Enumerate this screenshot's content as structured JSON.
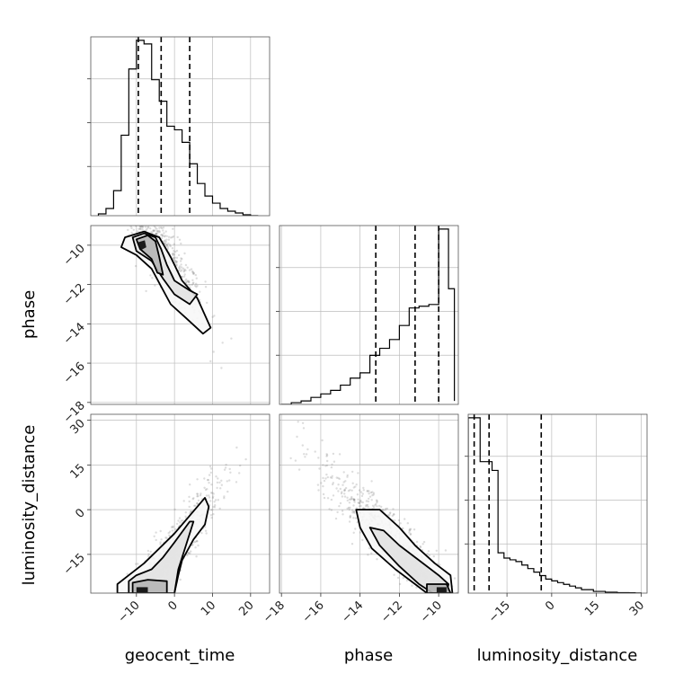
{
  "chart_data": {
    "type": "corner",
    "parameters": [
      "geocent_time",
      "phase",
      "luminosity_distance"
    ],
    "grid": true,
    "quantile_lines": "dashed",
    "tick_labels": {
      "geocent_time": [
        "−10",
        "0",
        "10",
        "20"
      ],
      "phase": [
        "−18",
        "−16",
        "−14",
        "−12",
        "−10"
      ],
      "luminosity_distance": [
        "−15",
        "0",
        "15",
        "30"
      ]
    },
    "ranges": {
      "geocent_time": [
        -22,
        25
      ],
      "phase": [
        -18.1,
        -9.0
      ],
      "luminosity_distance": [
        -28,
        32
      ]
    },
    "marginals": [
      {
        "parameter": "geocent_time",
        "bin_edges": [
          -20,
          -18,
          -16,
          -14,
          -12,
          -10,
          -8,
          -6,
          -4,
          -2,
          0,
          2,
          4,
          6,
          8,
          10,
          12,
          14,
          16,
          18,
          20,
          22
        ],
        "counts": [
          1,
          4,
          14,
          45,
          82,
          98,
          96,
          76,
          64,
          50,
          48,
          41,
          29,
          18,
          11,
          7,
          4,
          2.5,
          1.5,
          0.5,
          0
        ],
        "quantiles": [
          -9.5,
          -3.5,
          4.0
        ]
      },
      {
        "parameter": "phase",
        "bin_edges": [
          -18,
          -17.5,
          -17,
          -16.5,
          -16,
          -15.5,
          -15,
          -14.5,
          -14,
          -13.5,
          -13,
          -12.5,
          -12,
          -11.5,
          -11,
          -10.5,
          -10,
          -9.5,
          -9.2
        ],
        "counts": [
          0,
          1,
          2,
          4,
          6,
          8,
          11,
          15,
          18,
          28,
          32,
          37,
          45,
          55,
          56,
          57,
          100,
          66,
          2
        ],
        "quantiles": [
          -13.2,
          -11.2,
          -10.0
        ]
      },
      {
        "parameter": "luminosity_distance",
        "bin_edges": [
          -28,
          -26,
          -24,
          -22,
          -20,
          -18,
          -16,
          -14,
          -12,
          -10,
          -8,
          -6,
          -4,
          -2,
          0,
          2,
          4,
          6,
          8,
          10,
          12,
          14,
          16,
          18,
          20,
          22,
          24,
          26,
          28,
          30
        ],
        "counts": [
          100,
          100,
          75,
          75,
          70,
          23,
          20,
          19,
          18,
          16,
          14,
          12,
          10,
          8,
          7,
          6,
          5,
          4,
          3,
          2,
          2,
          1,
          1,
          0.5,
          0.5,
          0.3,
          0.3,
          0.2,
          0.1
        ],
        "quantiles": [
          -26.0,
          -21.0,
          -3.5
        ]
      }
    ],
    "joint": [
      {
        "x": "geocent_time",
        "y": "phase",
        "samples_trend": {
          "x_mean": -4,
          "x_sd": 6,
          "y_at_x": {
            "slope": -0.28,
            "intercept": -11.2
          },
          "scatter_sd": 0.8
        },
        "contours": [
          [
            [
              -13,
              -9.6
            ],
            [
              -8,
              -9.3
            ],
            [
              -4,
              -9.6
            ],
            [
              -1,
              -10.6
            ],
            [
              2,
              -11.8
            ],
            [
              6,
              -12.7
            ],
            [
              9.5,
              -14.2
            ],
            [
              7.5,
              -14.5
            ],
            [
              3,
              -13.7
            ],
            [
              -1,
              -13
            ],
            [
              -3.5,
              -12.1
            ],
            [
              -6,
              -11.2
            ],
            [
              -10,
              -10.5
            ],
            [
              -14,
              -10.1
            ]
          ],
          [
            [
              -11,
              -9.6
            ],
            [
              -8,
              -9.4
            ],
            [
              -5,
              -9.6
            ],
            [
              -3.5,
              -10.2
            ],
            [
              -2,
              -11
            ],
            [
              0,
              -11.8
            ],
            [
              4,
              -12.3
            ],
            [
              6,
              -12.5
            ],
            [
              4,
              -13
            ],
            [
              0,
              -12.5
            ],
            [
              -3,
              -11.7
            ],
            [
              -6,
              -10.8
            ],
            [
              -10,
              -10.3
            ]
          ],
          [
            [
              -10,
              -9.7
            ],
            [
              -7,
              -9.5
            ],
            [
              -5,
              -9.8
            ],
            [
              -4,
              -10.6
            ],
            [
              -3,
              -11.5
            ],
            [
              -4.5,
              -11.4
            ],
            [
              -6,
              -10.7
            ],
            [
              -9,
              -10.2
            ]
          ],
          [
            [
              -9.6,
              -9.85
            ],
            [
              -7.8,
              -9.75
            ],
            [
              -7.4,
              -10.1
            ],
            [
              -8.8,
              -10.25
            ]
          ]
        ]
      },
      {
        "x": "geocent_time",
        "y": "luminosity_distance",
        "samples_trend": {
          "x_mean": -2,
          "x_sd": 7,
          "y_at_x": {
            "slope": 1.7,
            "intercept": -13
          },
          "scatter_sd": 5
        },
        "contours": [
          [
            [
              -15,
              -25
            ],
            [
              -12,
              -22
            ],
            [
              -8,
              -18
            ],
            [
              -4,
              -13
            ],
            [
              0,
              -8
            ],
            [
              4,
              -2
            ],
            [
              8,
              4
            ],
            [
              9,
              1
            ],
            [
              8,
              -5
            ],
            [
              5,
              -10
            ],
            [
              2,
              -17
            ],
            [
              1,
              -22
            ],
            [
              0,
              -28
            ],
            [
              -15,
              -28
            ]
          ],
          [
            [
              -12,
              -24
            ],
            [
              -10,
              -22
            ],
            [
              -6,
              -20
            ],
            [
              -3,
              -16
            ],
            [
              0,
              -11
            ],
            [
              4,
              -4
            ],
            [
              5,
              -4
            ],
            [
              3,
              -12
            ],
            [
              1,
              -20
            ],
            [
              0,
              -28
            ],
            [
              -12,
              -28
            ]
          ],
          [
            [
              -11,
              -28
            ],
            [
              -11,
              -24.5
            ],
            [
              -7,
              -23.5
            ],
            [
              -2,
              -24
            ],
            [
              -2,
              -28
            ]
          ],
          [
            [
              -10,
              -28
            ],
            [
              -10,
              -26
            ],
            [
              -7,
              -26
            ],
            [
              -7,
              -28
            ]
          ]
        ]
      },
      {
        "x": "phase",
        "y": "luminosity_distance",
        "samples_trend": {
          "x_mean": -12.5,
          "x_sd": 1.8,
          "y_at_x": {
            "slope": -6.5,
            "intercept": -90
          },
          "scatter_sd": 5
        },
        "contours": [
          [
            [
              -14.2,
              0
            ],
            [
              -13,
              0
            ],
            [
              -12,
              -6
            ],
            [
              -11.2,
              -12
            ],
            [
              -10.2,
              -18
            ],
            [
              -9.4,
              -22
            ],
            [
              -9.3,
              -28
            ],
            [
              -10.6,
              -28
            ],
            [
              -11.2,
              -25
            ],
            [
              -12.2,
              -20
            ],
            [
              -13.4,
              -13
            ],
            [
              -14,
              -6
            ]
          ],
          [
            [
              -13.5,
              -6
            ],
            [
              -12.8,
              -7
            ],
            [
              -12,
              -12
            ],
            [
              -11,
              -17
            ],
            [
              -10,
              -22
            ],
            [
              -9.5,
              -25
            ],
            [
              -9.6,
              -28
            ],
            [
              -10.3,
              -28
            ],
            [
              -11,
              -25
            ],
            [
              -12,
              -19
            ],
            [
              -13,
              -12
            ]
          ],
          [
            [
              -10.6,
              -28
            ],
            [
              -10.6,
              -25
            ],
            [
              -9.6,
              -25
            ],
            [
              -9.4,
              -28
            ]
          ],
          [
            [
              -10.1,
              -28
            ],
            [
              -10.1,
              -26
            ],
            [
              -9.6,
              -26
            ],
            [
              -9.6,
              -28
            ]
          ]
        ]
      }
    ]
  }
}
